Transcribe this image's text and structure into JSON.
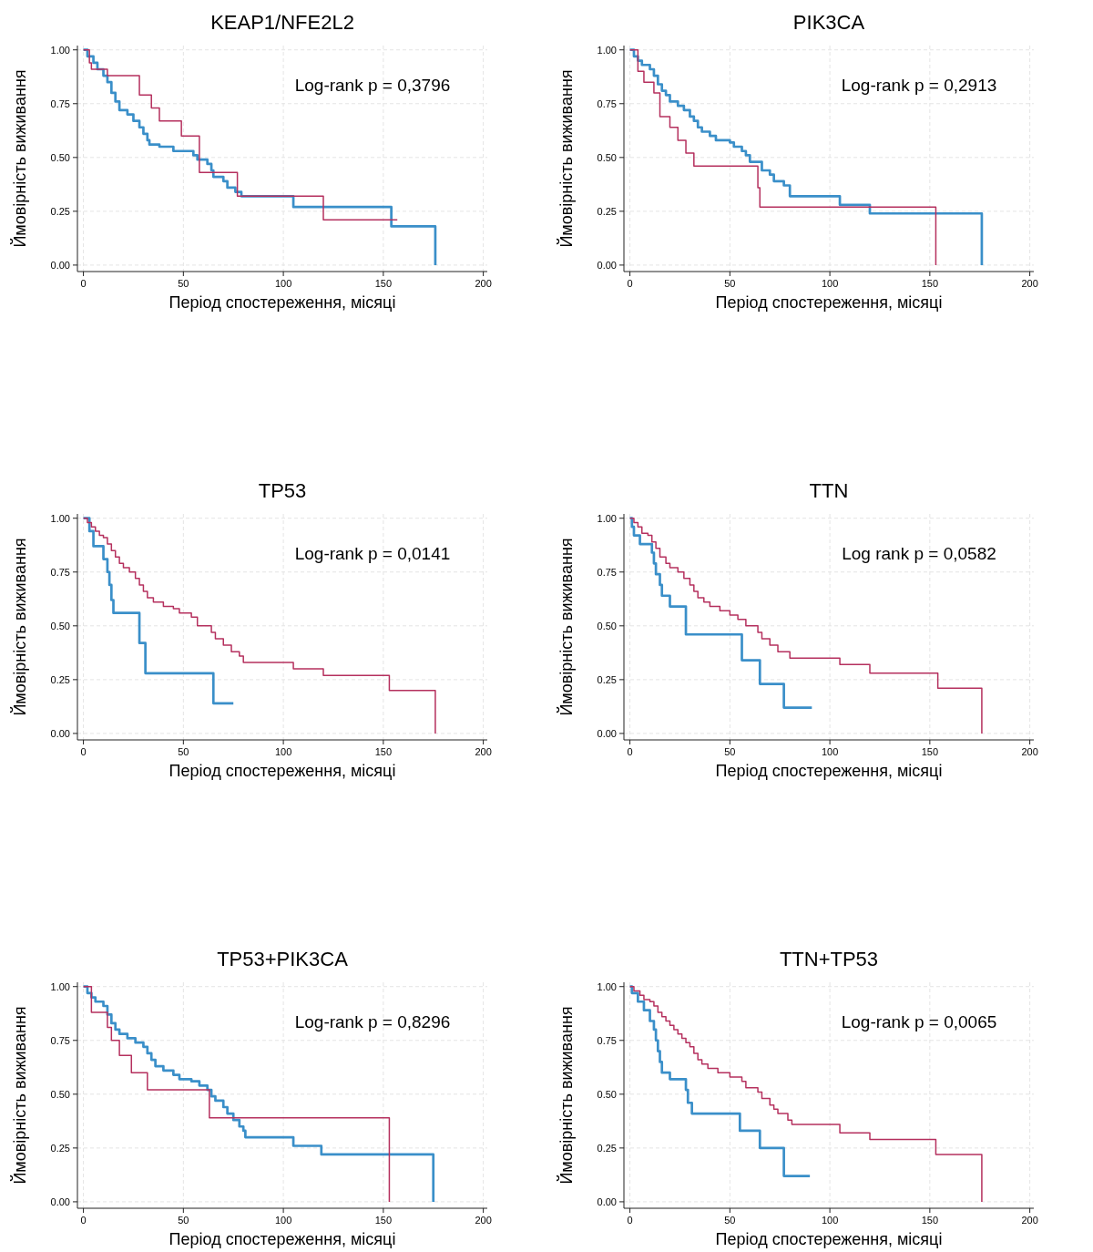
{
  "chart_data": [
    {
      "type": "step",
      "title": "KEAP1/NFE2L2",
      "xlabel": "Період спостереження, місяці",
      "ylabel": "Ймовірність виживання",
      "annotations": [
        "Log-rank p = 0,3796"
      ],
      "xlim": [
        -3,
        202
      ],
      "ylim": [
        -0.03,
        1.02
      ],
      "xticks": [
        0,
        50,
        100,
        150,
        200
      ],
      "yticks": [
        {
          "value": 0,
          "label": "0.00"
        },
        {
          "value": 0.25,
          "label": "0.25"
        },
        {
          "value": 0.5,
          "label": "0.50"
        },
        {
          "value": 0.75,
          "label": "0.75"
        },
        {
          "value": 1,
          "label": "1.00"
        }
      ],
      "grid": true,
      "series": [
        {
          "color": "#3a8fc9",
          "x": [
            0,
            2,
            5,
            7,
            10,
            12,
            14,
            16,
            18,
            22,
            25,
            28,
            30,
            32,
            33,
            38,
            45,
            55,
            57,
            62,
            64,
            65,
            70,
            72,
            76,
            79,
            105,
            154,
            176
          ],
          "values": [
            1,
            0.97,
            0.94,
            0.91,
            0.88,
            0.85,
            0.8,
            0.76,
            0.72,
            0.7,
            0.67,
            0.64,
            0.61,
            0.58,
            0.56,
            0.55,
            0.53,
            0.51,
            0.49,
            0.47,
            0.44,
            0.41,
            0.39,
            0.36,
            0.34,
            0.32,
            0.27,
            0.18,
            0
          ]
        },
        {
          "color": "#b5305e",
          "x": [
            0,
            3,
            4,
            12,
            28,
            34,
            38,
            49,
            58,
            77,
            120,
            157
          ],
          "values": [
            1,
            0.94,
            0.91,
            0.88,
            0.79,
            0.73,
            0.67,
            0.6,
            0.43,
            0.32,
            0.21,
            0.21
          ]
        }
      ]
    },
    {
      "type": "step",
      "title": "PIK3CA",
      "xlabel": "Період спостереження, місяці",
      "ylabel": "Ймовірність виживання",
      "annotations": [
        "Log-rank p = 0,2913"
      ],
      "xlim": [
        -3,
        202
      ],
      "ylim": [
        -0.03,
        1.02
      ],
      "xticks": [
        0,
        50,
        100,
        150,
        200
      ],
      "yticks": [
        {
          "value": 0,
          "label": "0.00"
        },
        {
          "value": 0.25,
          "label": "0.25"
        },
        {
          "value": 0.5,
          "label": "0.50"
        },
        {
          "value": 0.75,
          "label": "0.75"
        },
        {
          "value": 1,
          "label": "1.00"
        }
      ],
      "grid": true,
      "series": [
        {
          "color": "#3a8fc9",
          "x": [
            0,
            2,
            4,
            6,
            10,
            12,
            14,
            16,
            18,
            20,
            24,
            27,
            30,
            32,
            34,
            36,
            40,
            43,
            50,
            52,
            56,
            58,
            60,
            66,
            70,
            72,
            77,
            80,
            105,
            120,
            176
          ],
          "values": [
            1,
            0.97,
            0.95,
            0.93,
            0.91,
            0.88,
            0.84,
            0.81,
            0.79,
            0.76,
            0.74,
            0.72,
            0.69,
            0.67,
            0.64,
            0.62,
            0.6,
            0.58,
            0.57,
            0.55,
            0.53,
            0.51,
            0.48,
            0.44,
            0.42,
            0.39,
            0.37,
            0.32,
            0.28,
            0.24,
            0
          ]
        },
        {
          "color": "#b5305e",
          "x": [
            0,
            4,
            7,
            12,
            15,
            20,
            24,
            28,
            32,
            64,
            65,
            153
          ],
          "values": [
            1,
            0.9,
            0.85,
            0.8,
            0.69,
            0.64,
            0.58,
            0.52,
            0.46,
            0.36,
            0.27,
            0
          ]
        }
      ]
    },
    {
      "type": "step",
      "title": "TP53",
      "xlabel": "Період спостереження, місяці",
      "ylabel": "Ймовірність виживання",
      "annotations": [
        "Log-rank p = 0,0141"
      ],
      "xlim": [
        -3,
        202
      ],
      "ylim": [
        -0.03,
        1.02
      ],
      "xticks": [
        0,
        50,
        100,
        150,
        200
      ],
      "yticks": [
        {
          "value": 0,
          "label": "0.00"
        },
        {
          "value": 0.25,
          "label": "0.25"
        },
        {
          "value": 0.5,
          "label": "0.50"
        },
        {
          "value": 0.75,
          "label": "0.75"
        },
        {
          "value": 1,
          "label": "1.00"
        }
      ],
      "grid": true,
      "series": [
        {
          "color": "#3a8fc9",
          "x": [
            0,
            3,
            5,
            10,
            12,
            13,
            14,
            15,
            28,
            31,
            65,
            75
          ],
          "values": [
            1,
            0.94,
            0.87,
            0.81,
            0.75,
            0.69,
            0.62,
            0.56,
            0.42,
            0.28,
            0.14,
            0.14
          ]
        },
        {
          "color": "#b5305e",
          "x": [
            0,
            2,
            4,
            6,
            8,
            10,
            12,
            14,
            16,
            18,
            20,
            23,
            26,
            28,
            30,
            32,
            35,
            40,
            45,
            48,
            54,
            57,
            64,
            66,
            70,
            74,
            78,
            80,
            105,
            120,
            153,
            176
          ],
          "values": [
            1,
            0.98,
            0.96,
            0.94,
            0.92,
            0.91,
            0.88,
            0.85,
            0.82,
            0.79,
            0.77,
            0.75,
            0.72,
            0.69,
            0.66,
            0.63,
            0.61,
            0.59,
            0.58,
            0.56,
            0.54,
            0.5,
            0.47,
            0.44,
            0.41,
            0.38,
            0.36,
            0.33,
            0.3,
            0.27,
            0.2,
            0
          ]
        }
      ]
    },
    {
      "type": "step",
      "title": "TTN",
      "xlabel": "Період спостереження, місяці",
      "ylabel": "Ймовірність виживання",
      "annotations": [
        "Log rank p = 0,0582"
      ],
      "xlim": [
        -3,
        202
      ],
      "ylim": [
        -0.03,
        1.02
      ],
      "xticks": [
        0,
        50,
        100,
        150,
        200
      ],
      "yticks": [
        {
          "value": 0,
          "label": "0.00"
        },
        {
          "value": 0.25,
          "label": "0.25"
        },
        {
          "value": 0.5,
          "label": "0.50"
        },
        {
          "value": 0.75,
          "label": "0.75"
        },
        {
          "value": 1,
          "label": "1.00"
        }
      ],
      "grid": true,
      "series": [
        {
          "color": "#3a8fc9",
          "x": [
            0,
            1,
            2,
            5,
            11,
            12,
            13,
            15,
            16,
            20,
            28,
            56,
            65,
            77,
            91
          ],
          "values": [
            1,
            0.96,
            0.92,
            0.88,
            0.84,
            0.79,
            0.74,
            0.69,
            0.64,
            0.59,
            0.46,
            0.34,
            0.23,
            0.12,
            0.12
          ]
        },
        {
          "color": "#b5305e",
          "x": [
            0,
            2,
            4,
            6,
            9,
            11,
            13,
            15,
            18,
            20,
            24,
            27,
            30,
            32,
            34,
            37,
            40,
            45,
            50,
            54,
            58,
            64,
            66,
            70,
            74,
            80,
            105,
            120,
            154,
            176
          ],
          "values": [
            1,
            0.98,
            0.96,
            0.93,
            0.92,
            0.89,
            0.86,
            0.82,
            0.79,
            0.77,
            0.75,
            0.72,
            0.69,
            0.66,
            0.63,
            0.61,
            0.59,
            0.57,
            0.55,
            0.53,
            0.5,
            0.47,
            0.44,
            0.41,
            0.38,
            0.35,
            0.32,
            0.28,
            0.21,
            0
          ]
        }
      ]
    },
    {
      "type": "step",
      "title": "TP53+PIK3CA",
      "xlabel": "Період спостереження, місяці",
      "ylabel": "Ймовірність виживання",
      "annotations": [
        "Log-rank p = 0,8296"
      ],
      "xlim": [
        -3,
        202
      ],
      "ylim": [
        -0.03,
        1.02
      ],
      "xticks": [
        0,
        50,
        100,
        150,
        200
      ],
      "yticks": [
        {
          "value": 0,
          "label": "0.00"
        },
        {
          "value": 0.25,
          "label": "0.25"
        },
        {
          "value": 0.5,
          "label": "0.50"
        },
        {
          "value": 0.75,
          "label": "0.75"
        },
        {
          "value": 1,
          "label": "1.00"
        }
      ],
      "grid": true,
      "series": [
        {
          "color": "#3a8fc9",
          "x": [
            0,
            2,
            4,
            6,
            10,
            12,
            14,
            16,
            18,
            22,
            26,
            30,
            32,
            34,
            36,
            40,
            45,
            48,
            54,
            58,
            62,
            64,
            66,
            70,
            72,
            75,
            78,
            80,
            81,
            105,
            119,
            175
          ],
          "values": [
            1,
            0.97,
            0.95,
            0.93,
            0.91,
            0.87,
            0.83,
            0.8,
            0.78,
            0.76,
            0.74,
            0.72,
            0.69,
            0.66,
            0.63,
            0.61,
            0.59,
            0.57,
            0.56,
            0.54,
            0.52,
            0.49,
            0.47,
            0.44,
            0.41,
            0.38,
            0.35,
            0.33,
            0.3,
            0.26,
            0.22,
            0
          ]
        },
        {
          "color": "#b5305e",
          "x": [
            0,
            4,
            12,
            14,
            18,
            24,
            32,
            63,
            153
          ],
          "values": [
            1,
            0.88,
            0.81,
            0.75,
            0.68,
            0.6,
            0.52,
            0.39,
            0
          ]
        }
      ]
    },
    {
      "type": "step",
      "title": "TTN+TP53",
      "xlabel": "Період спостереження, місяці",
      "ylabel": "Ймовірність виживання",
      "annotations": [
        "Log-rank p = 0,0065"
      ],
      "xlim": [
        -3,
        202
      ],
      "ylim": [
        -0.03,
        1.02
      ],
      "xticks": [
        0,
        50,
        100,
        150,
        200
      ],
      "yticks": [
        {
          "value": 0,
          "label": "0.00"
        },
        {
          "value": 0.25,
          "label": "0.25"
        },
        {
          "value": 0.5,
          "label": "0.50"
        },
        {
          "value": 0.75,
          "label": "0.75"
        },
        {
          "value": 1,
          "label": "1.00"
        }
      ],
      "grid": true,
      "series": [
        {
          "color": "#3a8fc9",
          "x": [
            0,
            1,
            4,
            7,
            10,
            12,
            13,
            14,
            15,
            16,
            20,
            28,
            29,
            31,
            55,
            65,
            77,
            90
          ],
          "values": [
            1,
            0.97,
            0.93,
            0.89,
            0.84,
            0.8,
            0.75,
            0.7,
            0.65,
            0.6,
            0.57,
            0.52,
            0.46,
            0.41,
            0.33,
            0.25,
            0.12,
            0.12
          ]
        },
        {
          "color": "#b5305e",
          "x": [
            0,
            2,
            5,
            7,
            10,
            12,
            14,
            16,
            18,
            20,
            22,
            24,
            26,
            28,
            30,
            32,
            34,
            36,
            39,
            44,
            50,
            56,
            58,
            64,
            66,
            70,
            72,
            74,
            79,
            81,
            105,
            120,
            153,
            176
          ],
          "values": [
            1,
            0.98,
            0.96,
            0.94,
            0.93,
            0.91,
            0.88,
            0.86,
            0.84,
            0.82,
            0.8,
            0.78,
            0.76,
            0.74,
            0.72,
            0.69,
            0.66,
            0.64,
            0.62,
            0.6,
            0.58,
            0.56,
            0.53,
            0.51,
            0.48,
            0.45,
            0.43,
            0.41,
            0.38,
            0.36,
            0.32,
            0.29,
            0.22,
            0
          ]
        }
      ]
    }
  ]
}
